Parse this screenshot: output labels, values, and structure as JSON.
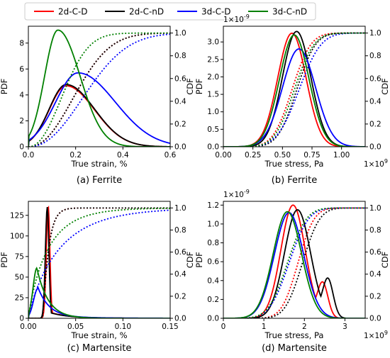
{
  "legend": {
    "entries": [
      {
        "label": "2d-C-D",
        "color": "#ff0000"
      },
      {
        "label": "2d-C-nD",
        "color": "#000000"
      },
      {
        "label": "3d-C-D",
        "color": "#0000ff"
      },
      {
        "label": "3d-C-nD",
        "color": "#008000"
      }
    ]
  },
  "chart_data": [
    {
      "id": "a",
      "type": "line",
      "caption": "(a) Ferrite",
      "xlabel": "True strain, %",
      "ylabel": "PDF",
      "y2label": "CDF",
      "xlim": [
        0,
        0.6
      ],
      "ylim": [
        0,
        9.3
      ],
      "y2lim": [
        0,
        1.06
      ],
      "xticks": [
        "0.0",
        "0.2",
        "0.4",
        "0.6"
      ],
      "yticks": [
        "0",
        "2",
        "4",
        "6",
        "8"
      ],
      "y2ticks": [
        "0.0",
        "0.2",
        "0.4",
        "0.6",
        "0.8",
        "1.0"
      ],
      "series": [
        {
          "color": "#ff0000",
          "mode": "skewed",
          "peak_x": 0.16,
          "peak_y": 4.7,
          "cdf_mid": 0.19
        },
        {
          "color": "#000000",
          "mode": "skewed",
          "peak_x": 0.16,
          "peak_y": 4.8,
          "cdf_mid": 0.19
        },
        {
          "color": "#0000ff",
          "mode": "skewed",
          "peak_x": 0.21,
          "peak_y": 5.7,
          "cdf_mid": 0.23
        },
        {
          "color": "#008000",
          "mode": "skewed",
          "peak_x": 0.125,
          "peak_y": 9.0,
          "cdf_mid": 0.14
        }
      ]
    },
    {
      "id": "b",
      "type": "line",
      "caption": "(b) Ferrite",
      "xlabel": "True stress, Pa",
      "ylabel": "PDF",
      "y2label": "CDF",
      "xlim": [
        0,
        1.2
      ],
      "ylim": [
        0,
        3.45
      ],
      "y2lim": [
        0,
        1.06
      ],
      "xticks": [
        "0.00",
        "0.25",
        "0.50",
        "0.75",
        "1.00"
      ],
      "yticks": [
        "0.0",
        "0.5",
        "1.0",
        "1.5",
        "2.0",
        "2.5",
        "3.0"
      ],
      "y2ticks": [
        "0.0",
        "0.2",
        "0.4",
        "0.6",
        "0.8",
        "1.0"
      ],
      "x_multiplier": "1e9",
      "y_multiplier": "1e-9",
      "series": [
        {
          "color": "#ff0000",
          "mode": "bell",
          "peak_x": 0.58,
          "peak_y": 3.25,
          "sd": 0.12
        },
        {
          "color": "#000000",
          "mode": "bell",
          "peak_x": 0.62,
          "peak_y": 3.3,
          "sd": 0.12
        },
        {
          "color": "#0000ff",
          "mode": "bell",
          "peak_x": 0.64,
          "peak_y": 2.8,
          "sd": 0.14
        },
        {
          "color": "#008000",
          "mode": "bell",
          "peak_x": 0.6,
          "peak_y": 3.2,
          "sd": 0.125
        }
      ]
    },
    {
      "id": "c",
      "type": "line",
      "caption": "(c) Martensite",
      "xlabel": "True strain, %",
      "ylabel": "PDF",
      "y2label": "CDF",
      "xlim": [
        0,
        0.15
      ],
      "ylim": [
        0,
        142
      ],
      "y2lim": [
        0,
        1.06
      ],
      "xticks": [
        "0.00",
        "0.05",
        "0.10",
        "0.15"
      ],
      "yticks": [
        "0",
        "25",
        "50",
        "75",
        "100",
        "125"
      ],
      "y2ticks": [
        "0.0",
        "0.2",
        "0.4",
        "0.6",
        "0.8",
        "1.0"
      ],
      "series": [
        {
          "color": "#ff0000",
          "mode": "narrow",
          "peak_x": 0.021,
          "peak_y": 136,
          "cdf_mid": 0.021
        },
        {
          "color": "#000000",
          "mode": "narrow",
          "peak_x": 0.02,
          "peak_y": 135,
          "cdf_mid": 0.021
        },
        {
          "color": "#0000ff",
          "mode": "wide",
          "peak_x": 0.01,
          "peak_y": 36,
          "cdf_mid": 0.022
        },
        {
          "color": "#008000",
          "mode": "wide",
          "peak_x": 0.009,
          "peak_y": 61,
          "cdf_mid": 0.014
        }
      ]
    },
    {
      "id": "d",
      "type": "line",
      "caption": "(d) Martensite",
      "xlabel": "True stress, Pa",
      "ylabel": "PDF",
      "y2label": "CDF",
      "xlim": [
        0,
        3.5
      ],
      "ylim": [
        0,
        1.24
      ],
      "y2lim": [
        0,
        1.06
      ],
      "xticks": [
        "0",
        "1",
        "2",
        "3"
      ],
      "yticks": [
        "0.0",
        "0.2",
        "0.4",
        "0.6",
        "0.8",
        "1.0",
        "1.2"
      ],
      "y2ticks": [
        "0.0",
        "0.2",
        "0.4",
        "0.6",
        "0.8",
        "1.0"
      ],
      "x_multiplier": "1e9",
      "y_multiplier": "1e-9",
      "series": [
        {
          "color": "#ff0000",
          "mode": "bimodal",
          "peak_x": 1.72,
          "peak_y": 1.2,
          "sd": 0.3,
          "p2x": 2.45,
          "p2y": 0.4
        },
        {
          "color": "#000000",
          "mode": "bimodal",
          "peak_x": 1.83,
          "peak_y": 1.15,
          "sd": 0.32,
          "p2x": 2.58,
          "p2y": 0.44
        },
        {
          "color": "#0000ff",
          "mode": "bell",
          "peak_x": 1.62,
          "peak_y": 1.12,
          "sd": 0.36
        },
        {
          "color": "#008000",
          "mode": "bell",
          "peak_x": 1.58,
          "peak_y": 1.13,
          "sd": 0.35
        }
      ]
    }
  ]
}
